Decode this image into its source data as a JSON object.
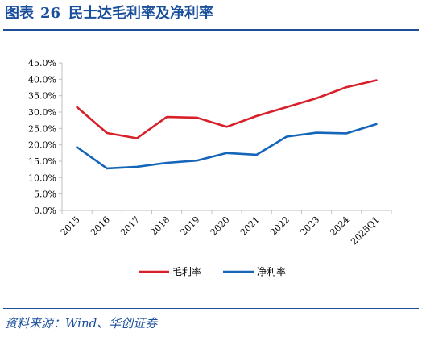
{
  "header": {
    "label": "图表",
    "number": "26",
    "title": "民士达毛利率及净利率"
  },
  "footer": {
    "source_prefix": "资料来源：",
    "source_text": "Wind、华创证券"
  },
  "colors": {
    "accent": "#1f4e99",
    "series_gross": "#d7202a",
    "series_net": "#1565b8",
    "axis": "#bfbfbf"
  },
  "chart_data": {
    "type": "line",
    "title": "",
    "xlabel": "",
    "ylabel": "",
    "categories": [
      "2015",
      "2016",
      "2017",
      "2018",
      "2019",
      "2020",
      "2021",
      "2022",
      "2023",
      "2024",
      "2025Q1"
    ],
    "ylim": [
      0,
      45
    ],
    "yticks": [
      0,
      5,
      10,
      15,
      20,
      25,
      30,
      35,
      40,
      45
    ],
    "ytick_labels": [
      "0.0%",
      "5.0%",
      "10.0%",
      "15.0%",
      "20.0%",
      "25.0%",
      "30.0%",
      "35.0%",
      "40.0%",
      "45.0%"
    ],
    "grid": false,
    "legend_position": "bottom-center",
    "series": [
      {
        "name": "毛利率",
        "color": "#d7202a",
        "values": [
          31.5,
          23.6,
          22.0,
          28.5,
          28.3,
          25.5,
          28.8,
          31.5,
          34.2,
          37.6,
          39.7
        ]
      },
      {
        "name": "净利率",
        "color": "#1565b8",
        "values": [
          19.3,
          12.8,
          13.3,
          14.5,
          15.2,
          17.5,
          17.0,
          22.5,
          23.7,
          23.5,
          26.3
        ]
      }
    ]
  }
}
